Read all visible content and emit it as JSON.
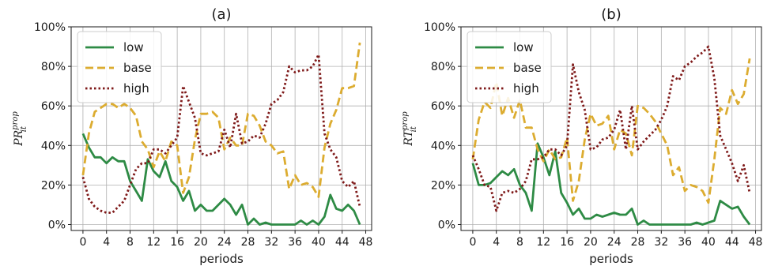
{
  "chart_data": [
    {
      "type": "line",
      "title": "(a)",
      "xlabel": "periods",
      "ylabel_base": "PR",
      "ylabel_sup": "prop",
      "ylabel_sub": "it",
      "xlim": [
        -2,
        49
      ],
      "ylim": [
        -0.03,
        1.0
      ],
      "xticks": [
        0,
        4,
        8,
        12,
        16,
        20,
        24,
        28,
        32,
        36,
        40,
        44,
        48
      ],
      "yticks": [
        0,
        0.2,
        0.4,
        0.6,
        0.8,
        1.0
      ],
      "ytick_labels": [
        "0%",
        "20%",
        "40%",
        "60%",
        "80%",
        "100%"
      ],
      "grid": true,
      "legend_position": "top-left",
      "x": [
        0,
        1,
        2,
        3,
        4,
        5,
        6,
        7,
        8,
        9,
        10,
        11,
        12,
        13,
        14,
        15,
        16,
        17,
        18,
        19,
        20,
        21,
        22,
        23,
        24,
        25,
        26,
        27,
        28,
        29,
        30,
        31,
        32,
        33,
        34,
        35,
        36,
        37,
        38,
        39,
        40,
        41,
        42,
        43,
        44,
        45,
        46,
        47
      ],
      "series": [
        {
          "name": "low",
          "color": "#2e8b45",
          "dash": "solid",
          "values": [
            0.46,
            0.39,
            0.34,
            0.34,
            0.31,
            0.34,
            0.32,
            0.32,
            0.22,
            0.17,
            0.12,
            0.33,
            0.27,
            0.24,
            0.32,
            0.22,
            0.19,
            0.12,
            0.17,
            0.07,
            0.1,
            0.07,
            0.07,
            0.1,
            0.13,
            0.1,
            0.05,
            0.1,
            0.0,
            0.03,
            0.0,
            0.01,
            0.0,
            0.0,
            0.0,
            0.0,
            0.0,
            0.02,
            0.0,
            0.02,
            0.0,
            0.04,
            0.15,
            0.08,
            0.07,
            0.1,
            0.07,
            0.0
          ]
        },
        {
          "name": "base",
          "color": "#dcac30",
          "dash": "dashed",
          "values": [
            0.25,
            0.46,
            0.57,
            0.59,
            0.61,
            0.61,
            0.59,
            0.61,
            0.59,
            0.55,
            0.42,
            0.38,
            0.29,
            0.37,
            0.32,
            0.42,
            0.4,
            0.16,
            0.24,
            0.43,
            0.56,
            0.56,
            0.57,
            0.54,
            0.38,
            0.44,
            0.4,
            0.4,
            0.56,
            0.55,
            0.5,
            0.42,
            0.4,
            0.36,
            0.37,
            0.18,
            0.25,
            0.2,
            0.21,
            0.19,
            0.14,
            0.39,
            0.51,
            0.58,
            0.69,
            0.69,
            0.7,
            0.92
          ]
        },
        {
          "name": "high",
          "color": "#7f1a1a",
          "dash": "dotted",
          "values": [
            0.24,
            0.13,
            0.09,
            0.07,
            0.06,
            0.06,
            0.09,
            0.12,
            0.2,
            0.28,
            0.31,
            0.31,
            0.38,
            0.38,
            0.36,
            0.4,
            0.44,
            0.7,
            0.62,
            0.54,
            0.36,
            0.35,
            0.36,
            0.37,
            0.48,
            0.39,
            0.56,
            0.41,
            0.42,
            0.45,
            0.44,
            0.51,
            0.61,
            0.63,
            0.67,
            0.8,
            0.77,
            0.78,
            0.78,
            0.8,
            0.86,
            0.46,
            0.38,
            0.34,
            0.22,
            0.19,
            0.22,
            0.09
          ]
        }
      ]
    },
    {
      "type": "line",
      "title": "(b)",
      "xlabel": "periods",
      "ylabel_base": "RT",
      "ylabel_sup": "prop",
      "ylabel_sub": "it",
      "xlim": [
        -2,
        49
      ],
      "ylim": [
        -0.03,
        1.0
      ],
      "xticks": [
        0,
        4,
        8,
        12,
        16,
        20,
        24,
        28,
        32,
        36,
        40,
        44,
        48
      ],
      "yticks": [
        0,
        0.2,
        0.4,
        0.6,
        0.8,
        1.0
      ],
      "ytick_labels": [
        "0%",
        "20%",
        "40%",
        "60%",
        "80%",
        "100%"
      ],
      "grid": true,
      "legend_position": "top-left",
      "x": [
        0,
        1,
        2,
        3,
        4,
        5,
        6,
        7,
        8,
        9,
        10,
        11,
        12,
        13,
        14,
        15,
        16,
        17,
        18,
        19,
        20,
        21,
        22,
        23,
        24,
        25,
        26,
        27,
        28,
        29,
        30,
        31,
        32,
        33,
        34,
        35,
        36,
        37,
        38,
        39,
        40,
        41,
        42,
        43,
        44,
        45,
        46,
        47
      ],
      "series": [
        {
          "name": "low",
          "color": "#2e8b45",
          "dash": "solid",
          "values": [
            0.31,
            0.2,
            0.2,
            0.21,
            0.24,
            0.27,
            0.25,
            0.28,
            0.2,
            0.16,
            0.07,
            0.41,
            0.34,
            0.25,
            0.37,
            0.16,
            0.11,
            0.05,
            0.08,
            0.03,
            0.03,
            0.05,
            0.04,
            0.05,
            0.06,
            0.05,
            0.05,
            0.08,
            0.0,
            0.02,
            0.0,
            0.0,
            0.0,
            0.0,
            0.0,
            0.0,
            0.0,
            0.0,
            0.01,
            0.0,
            0.01,
            0.02,
            0.12,
            0.1,
            0.08,
            0.09,
            0.04,
            0.0
          ]
        },
        {
          "name": "base",
          "color": "#dcac30",
          "dash": "dashed",
          "values": [
            0.33,
            0.53,
            0.62,
            0.59,
            0.72,
            0.55,
            0.64,
            0.54,
            0.63,
            0.49,
            0.49,
            0.38,
            0.32,
            0.38,
            0.33,
            0.34,
            0.44,
            0.12,
            0.22,
            0.43,
            0.56,
            0.5,
            0.51,
            0.55,
            0.38,
            0.48,
            0.46,
            0.35,
            0.6,
            0.59,
            0.56,
            0.52,
            0.46,
            0.4,
            0.25,
            0.29,
            0.17,
            0.2,
            0.19,
            0.17,
            0.11,
            0.33,
            0.59,
            0.56,
            0.68,
            0.61,
            0.66,
            0.84
          ]
        },
        {
          "name": "high",
          "color": "#7f1a1a",
          "dash": "dotted",
          "values": [
            0.35,
            0.28,
            0.2,
            0.19,
            0.07,
            0.16,
            0.17,
            0.16,
            0.18,
            0.22,
            0.33,
            0.33,
            0.34,
            0.38,
            0.38,
            0.35,
            0.4,
            0.81,
            0.67,
            0.58,
            0.38,
            0.39,
            0.43,
            0.44,
            0.48,
            0.58,
            0.38,
            0.6,
            0.38,
            0.42,
            0.45,
            0.48,
            0.53,
            0.6,
            0.75,
            0.73,
            0.8,
            0.82,
            0.85,
            0.87,
            0.9,
            0.74,
            0.45,
            0.38,
            0.31,
            0.22,
            0.3,
            0.16
          ]
        }
      ]
    }
  ]
}
